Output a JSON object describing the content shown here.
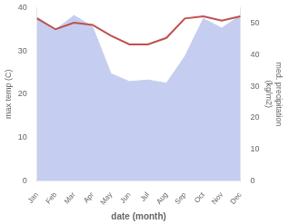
{
  "chart_data": {
    "type": "line",
    "categories": [
      "Jan",
      "Feb",
      "Mar",
      "Apr",
      "May",
      "Jun",
      "Jul",
      "Aug",
      "Sep",
      "Oct",
      "Nov",
      "Dec"
    ],
    "xlabel": "date (month)",
    "ylabel": "max temp (C)",
    "y2label": "med. precipitation\n(kg/m2)",
    "series": [
      {
        "type": "line",
        "color": "#c0504d",
        "values": [
          37.5,
          35.0,
          36.5,
          36.0,
          33.5,
          31.5,
          31.5,
          33.0,
          37.5,
          38.0,
          37.0,
          38.0
        ]
      },
      {
        "type": "area",
        "color": "#c5cef0",
        "axis": "y2",
        "values": [
          52.0,
          48.0,
          52.5,
          49.0,
          34.0,
          31.5,
          32.0,
          31.0,
          39.5,
          51.5,
          48.5,
          52.5
        ]
      }
    ],
    "ylim": [
      0,
      40
    ],
    "yticks": [
      0,
      10,
      20,
      30,
      40
    ],
    "y2lim": [
      0,
      55
    ],
    "y2ticks": [
      0,
      10,
      20,
      30,
      40,
      50
    ],
    "grid": false
  }
}
